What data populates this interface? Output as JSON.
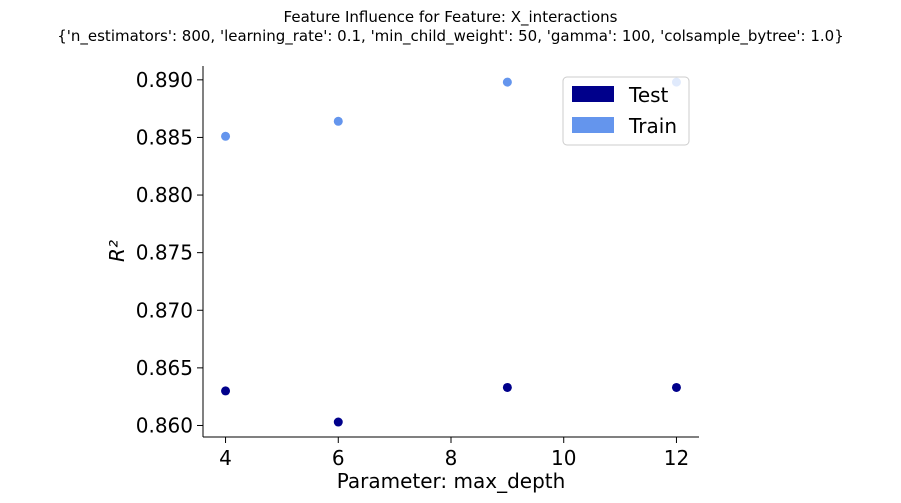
{
  "chart_data": {
    "type": "scatter",
    "title": "Feature Influence for Feature: X_interactions",
    "subtitle": "{'n_estimators': 800, 'learning_rate': 0.1, 'min_child_weight': 50, 'gamma': 100, 'colsample_bytree': 1.0}",
    "xlabel": "Parameter: max_depth",
    "ylabel": "R²",
    "xlim": [
      3.6,
      12.4
    ],
    "ylim": [
      0.859,
      0.8912
    ],
    "xticks": [
      4,
      6,
      8,
      10,
      12
    ],
    "xtick_labels": [
      "4",
      "6",
      "8",
      "10",
      "12"
    ],
    "yticks": [
      0.86,
      0.865,
      0.87,
      0.875,
      0.88,
      0.885,
      0.89
    ],
    "ytick_labels": [
      "0.860",
      "0.865",
      "0.870",
      "0.875",
      "0.880",
      "0.885",
      "0.890"
    ],
    "grid": false,
    "legend_position": "top-right",
    "series": [
      {
        "name": "Test",
        "color": "#00008b",
        "x": [
          4,
          6,
          9,
          12
        ],
        "y": [
          0.863,
          0.8603,
          0.8633,
          0.8633
        ]
      },
      {
        "name": "Train",
        "color": "#6495ed",
        "x": [
          4,
          6,
          9,
          12
        ],
        "y": [
          0.8851,
          0.8864,
          0.8898,
          0.8898
        ]
      }
    ]
  }
}
